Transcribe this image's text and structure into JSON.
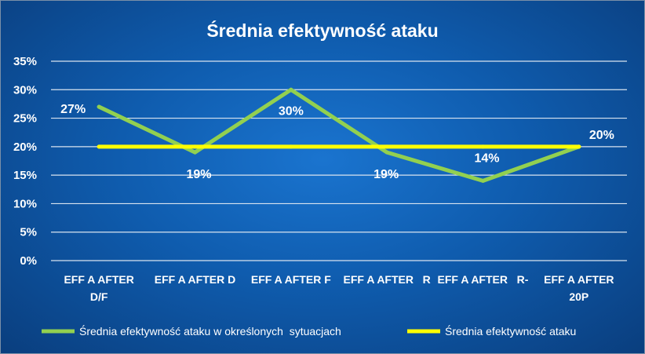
{
  "chart_data": {
    "type": "line",
    "title": "Średnia efektywność ataku",
    "categories": [
      [
        "EFF A AFTER",
        "D/F"
      ],
      [
        "EFF A AFTER D"
      ],
      [
        "EFF A AFTER F"
      ],
      [
        "EFF A AFTER   R"
      ],
      [
        "EFF A AFTER   R-"
      ],
      [
        "EFF A AFTER",
        "20P"
      ]
    ],
    "ylim": [
      0,
      0.35
    ],
    "yticks": [
      "0%",
      "5%",
      "10%",
      "15%",
      "20%",
      "25%",
      "30%",
      "35%"
    ],
    "grid": true,
    "legend_position": "bottom",
    "series": [
      {
        "name": "Średnia efektywność ataku w określonych  sytuacjach",
        "color": "#92d050",
        "values": [
          0.27,
          0.19,
          0.3,
          0.19,
          0.14,
          0.2
        ],
        "labels": [
          "27%",
          "19%",
          "30%",
          "19%",
          "14%",
          "20%"
        ]
      },
      {
        "name": "Średnia efektywność ataku",
        "color": "#ffff00",
        "values": [
          0.2,
          0.2,
          0.2,
          0.2,
          0.2,
          0.2
        ]
      }
    ]
  }
}
